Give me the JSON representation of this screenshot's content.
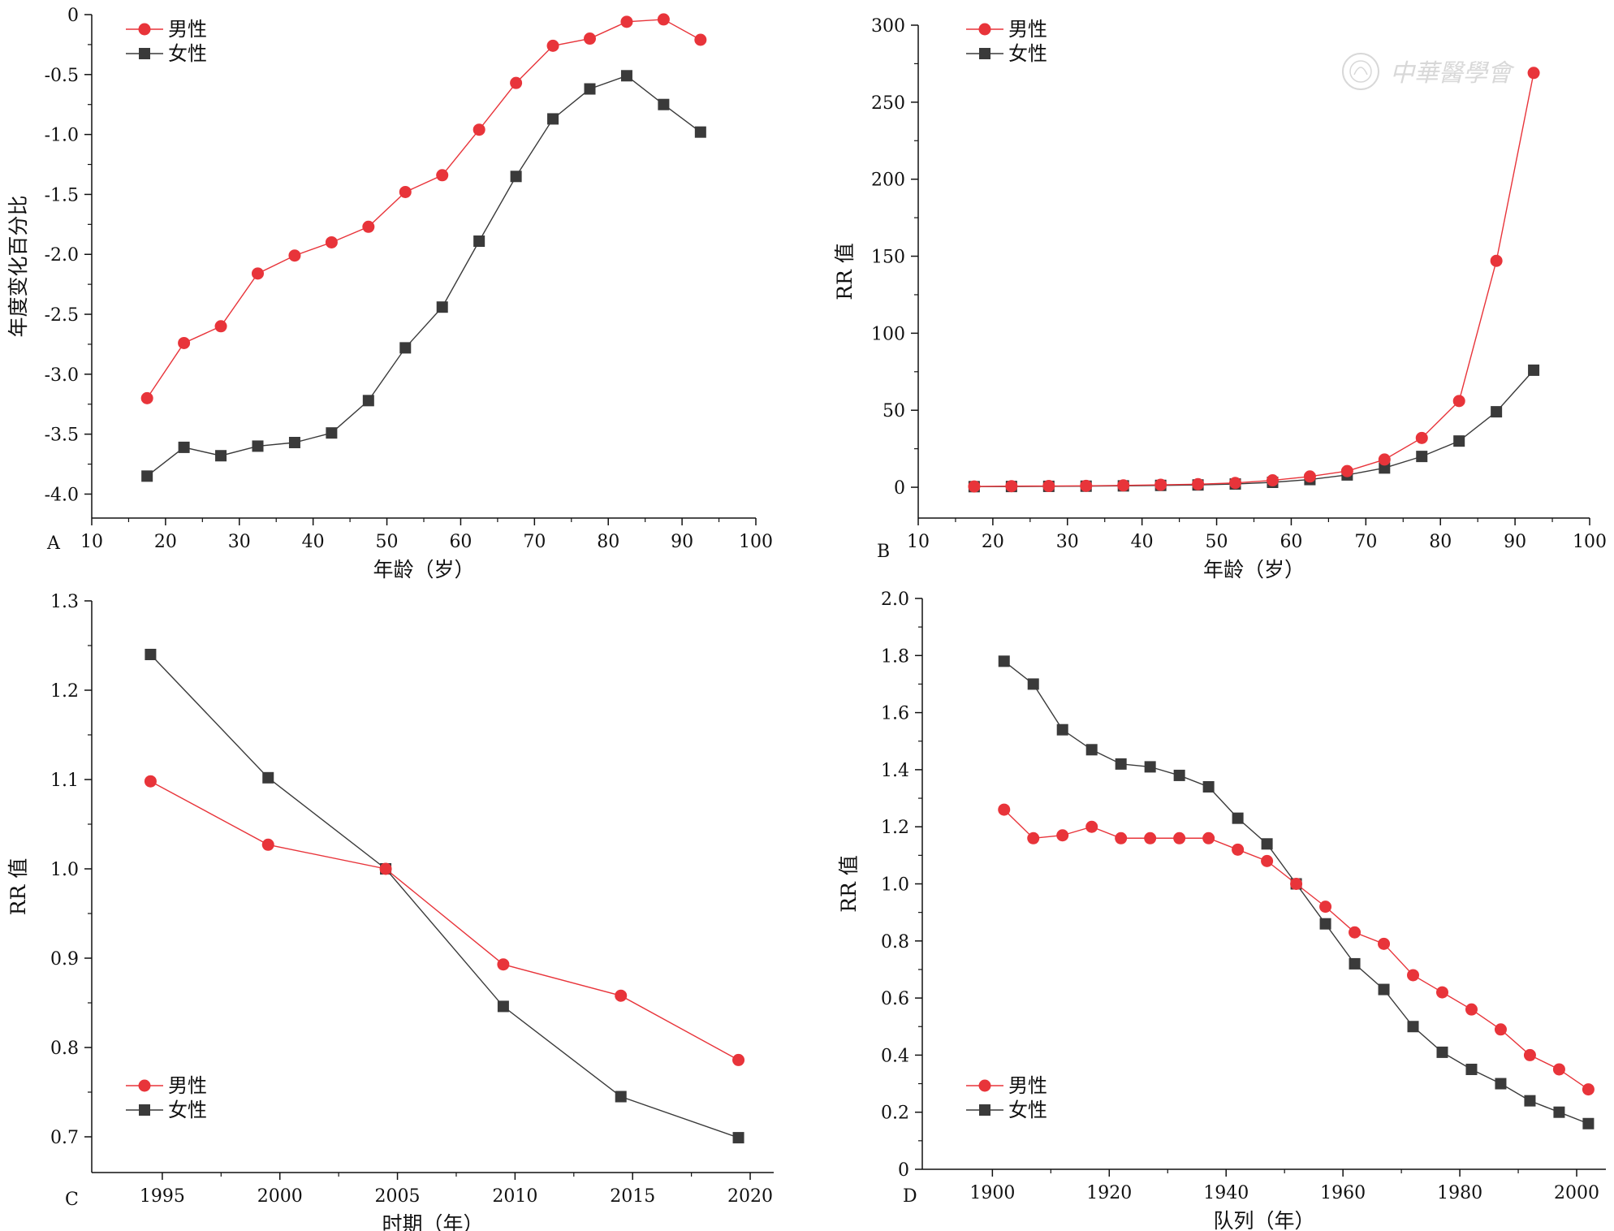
{
  "colors": {
    "male": "#e8343a",
    "female": "#3a3a3a",
    "axis": "#111111"
  },
  "watermark": {
    "text": "中華醫學會",
    "icon": "society-seal-icon"
  },
  "chart_data": [
    {
      "panel": "A",
      "type": "line",
      "xlabel": "年龄（岁）",
      "ylabel": "年度变化百分比",
      "xlim": [
        10,
        100
      ],
      "ylim": [
        -4.2,
        0
      ],
      "xticks": [
        10,
        20,
        30,
        40,
        50,
        60,
        70,
        80,
        90,
        100
      ],
      "yticks": [
        0,
        -0.5,
        -1.0,
        -1.5,
        -2.0,
        -2.5,
        -3.0,
        -3.5,
        -4.0
      ],
      "ytick_labels": [
        "0",
        "-0.5",
        "-1.0",
        "-1.5",
        "-2.0",
        "-2.5",
        "-3.0",
        "-3.5",
        "-4.0"
      ],
      "legend_position": "top-left",
      "x": [
        17.5,
        22.5,
        27.5,
        32.5,
        37.5,
        42.5,
        47.5,
        52.5,
        57.5,
        62.5,
        67.5,
        72.5,
        77.5,
        82.5,
        87.5,
        92.5
      ],
      "series": [
        {
          "name": "男性",
          "key": "male",
          "marker": "circle",
          "values": [
            -3.2,
            -2.74,
            -2.6,
            -2.16,
            -2.01,
            -1.9,
            -1.77,
            -1.48,
            -1.34,
            -0.96,
            -0.57,
            -0.26,
            -0.2,
            -0.06,
            -0.04,
            -0.21
          ]
        },
        {
          "name": "女性",
          "key": "female",
          "marker": "square",
          "values": [
            -3.85,
            -3.61,
            -3.68,
            -3.6,
            -3.57,
            -3.49,
            -3.22,
            -2.78,
            -2.44,
            -1.89,
            -1.35,
            -0.87,
            -0.62,
            -0.51,
            -0.75,
            -0.98
          ]
        }
      ]
    },
    {
      "panel": "B",
      "type": "line",
      "xlabel": "年龄（岁）",
      "ylabel": "RR 值",
      "xlim": [
        10,
        100
      ],
      "ylim": [
        -20,
        300
      ],
      "xticks": [
        10,
        20,
        30,
        40,
        50,
        60,
        70,
        80,
        90,
        100
      ],
      "yticks": [
        0,
        50,
        100,
        150,
        200,
        250,
        300
      ],
      "ytick_labels": [
        "0",
        "50",
        "100",
        "150",
        "200",
        "250",
        "300"
      ],
      "legend_position": "top-left",
      "x": [
        17.5,
        22.5,
        27.5,
        32.5,
        37.5,
        42.5,
        47.5,
        52.5,
        57.5,
        62.5,
        67.5,
        72.5,
        77.5,
        82.5,
        87.5,
        92.5
      ],
      "series": [
        {
          "name": "男性",
          "key": "male",
          "marker": "circle",
          "values": [
            0.5,
            0.7,
            0.8,
            0.9,
            1.2,
            1.6,
            2.0,
            2.8,
            4.5,
            7.0,
            10.5,
            18.0,
            32.0,
            56.0,
            147.0,
            269.0
          ]
        },
        {
          "name": "女性",
          "key": "female",
          "marker": "square",
          "values": [
            0.4,
            0.5,
            0.6,
            0.7,
            0.9,
            1.2,
            1.5,
            2.1,
            3.2,
            5.0,
            8.0,
            12.5,
            20.0,
            30.0,
            49.0,
            76.0
          ]
        }
      ]
    },
    {
      "panel": "C",
      "type": "line",
      "xlabel": "时期（年）",
      "ylabel": "RR 值",
      "xlim": [
        1992,
        2021
      ],
      "ylim": [
        0.66,
        1.3
      ],
      "xticks": [
        1995,
        2000,
        2005,
        2010,
        2015,
        2020
      ],
      "yticks": [
        0.7,
        0.8,
        0.9,
        1.0,
        1.1,
        1.2,
        1.3
      ],
      "ytick_labels": [
        "0.7",
        "0.8",
        "0.9",
        "1.0",
        "1.1",
        "1.2",
        "1.3"
      ],
      "legend_position": "bottom-left",
      "x": [
        1994.5,
        1999.5,
        2004.5,
        2009.5,
        2014.5,
        2019.5
      ],
      "series": [
        {
          "name": "男性",
          "key": "male",
          "marker": "circle",
          "values": [
            1.098,
            1.027,
            1.0,
            0.893,
            0.858,
            0.786
          ]
        },
        {
          "name": "女性",
          "key": "female",
          "marker": "square",
          "values": [
            1.24,
            1.102,
            1.0,
            0.846,
            0.745,
            0.699
          ]
        }
      ]
    },
    {
      "panel": "D",
      "type": "line",
      "xlabel": "队列（年）",
      "ylabel": "RR 值",
      "xlim": [
        1888,
        2005
      ],
      "ylim": [
        0,
        2.0
      ],
      "xticks": [
        1900,
        1920,
        1940,
        1960,
        1980,
        2000
      ],
      "yticks": [
        0,
        0.2,
        0.4,
        0.6,
        0.8,
        1.0,
        1.2,
        1.4,
        1.6,
        1.8,
        2.0
      ],
      "ytick_labels": [
        "0",
        "0.2",
        "0.4",
        "0.6",
        "0.8",
        "1.0",
        "1.2",
        "1.4",
        "1.6",
        "1.8",
        "2.0"
      ],
      "legend_position": "bottom-left",
      "x": [
        1902,
        1907,
        1912,
        1917,
        1922,
        1927,
        1932,
        1937,
        1942,
        1947,
        1952,
        1957,
        1962,
        1967,
        1972,
        1977,
        1982,
        1987,
        1992,
        1997,
        2002
      ],
      "series": [
        {
          "name": "男性",
          "key": "male",
          "marker": "circle",
          "values": [
            1.26,
            1.16,
            1.17,
            1.2,
            1.16,
            1.16,
            1.16,
            1.16,
            1.12,
            1.08,
            1.0,
            0.92,
            0.83,
            0.79,
            0.68,
            0.62,
            0.56,
            0.49,
            0.4,
            0.35,
            0.28
          ]
        },
        {
          "name": "女性",
          "key": "female",
          "marker": "square",
          "values": [
            1.78,
            1.7,
            1.54,
            1.47,
            1.42,
            1.41,
            1.38,
            1.34,
            1.23,
            1.14,
            1.0,
            0.86,
            0.72,
            0.63,
            0.5,
            0.41,
            0.35,
            0.3,
            0.24,
            0.2,
            0.16
          ]
        }
      ]
    }
  ]
}
